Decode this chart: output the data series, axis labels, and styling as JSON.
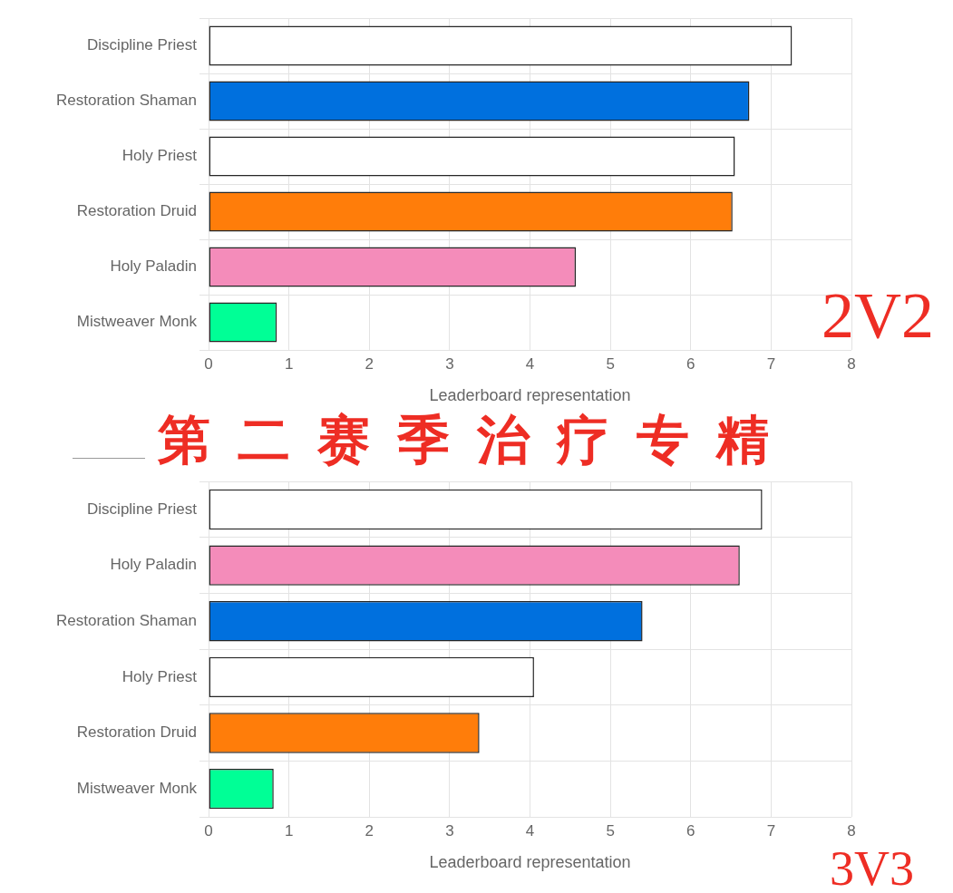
{
  "chart_data": [
    {
      "type": "bar",
      "orientation": "horizontal",
      "categories": [
        "Discipline Priest",
        "Restoration Shaman",
        "Holy Priest",
        "Restoration Druid",
        "Holy Paladin",
        "Mistweaver Monk"
      ],
      "values": [
        7.26,
        6.73,
        6.55,
        6.52,
        4.57,
        0.85
      ],
      "colors": [
        "#ffffff",
        "#0070de",
        "#ffffff",
        "#ff7d0a",
        "#f48cba",
        "#00ff96"
      ],
      "xlabel": "Leaderboard representation",
      "xlim": [
        0,
        8
      ],
      "xticks": [
        0,
        1,
        2,
        3,
        4,
        5,
        6,
        7,
        8
      ],
      "grid": true,
      "annotations": [
        "2V2"
      ]
    },
    {
      "type": "bar",
      "orientation": "horizontal",
      "title": "第二赛季治疗专精",
      "categories": [
        "Discipline Priest",
        "Holy Paladin",
        "Restoration Shaman",
        "Holy Priest",
        "Restoration Druid",
        "Mistweaver Monk"
      ],
      "values": [
        6.89,
        6.61,
        5.4,
        4.05,
        3.37,
        0.81
      ],
      "colors": [
        "#ffffff",
        "#f48cba",
        "#0070de",
        "#ffffff",
        "#ff7d0a",
        "#00ff96"
      ],
      "xlabel": "Leaderboard representation",
      "xlim": [
        0,
        8
      ],
      "xticks": [
        0,
        1,
        2,
        3,
        4,
        5,
        6,
        7,
        8
      ],
      "grid": true,
      "annotations": [
        "3V3"
      ]
    }
  ]
}
